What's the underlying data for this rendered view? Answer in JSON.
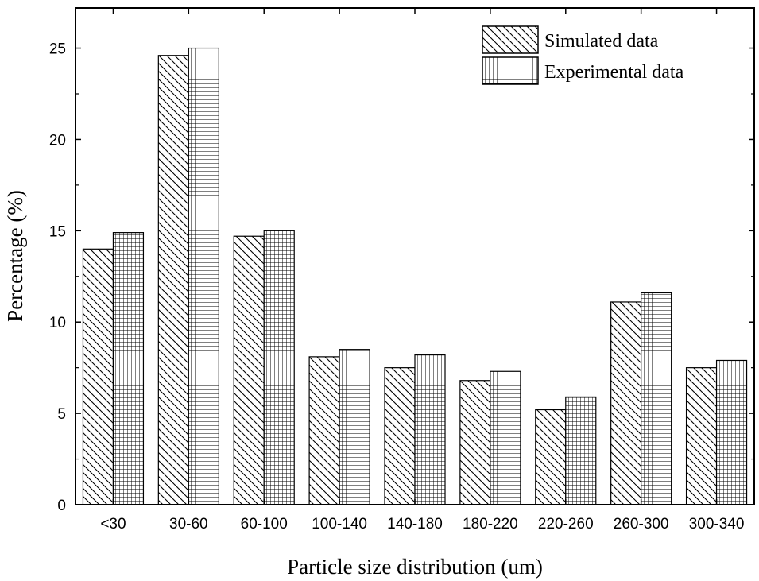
{
  "chart_data": {
    "type": "bar",
    "title": "",
    "xlabel": "Particle size distribution (um)",
    "ylabel": "Percentage (%)",
    "categories": [
      "<30",
      "30-60",
      "60-100",
      "100-140",
      "140-180",
      "180-220",
      "220-260",
      "260-300",
      "300-340"
    ],
    "series": [
      {
        "name": "Simulated data",
        "pattern": "diagonal-hatch",
        "values": [
          14.0,
          24.6,
          14.7,
          8.1,
          7.5,
          6.8,
          5.2,
          11.1,
          7.5
        ]
      },
      {
        "name": "Experimental data",
        "pattern": "grid-hatch",
        "values": [
          14.9,
          25.0,
          15.0,
          8.5,
          8.2,
          7.3,
          5.9,
          11.6,
          7.9
        ]
      }
    ],
    "ylim": [
      0,
      27.2
    ],
    "yticks": [
      0,
      5,
      10,
      15,
      20,
      25
    ],
    "legend_position": "top-right",
    "grid": false
  }
}
